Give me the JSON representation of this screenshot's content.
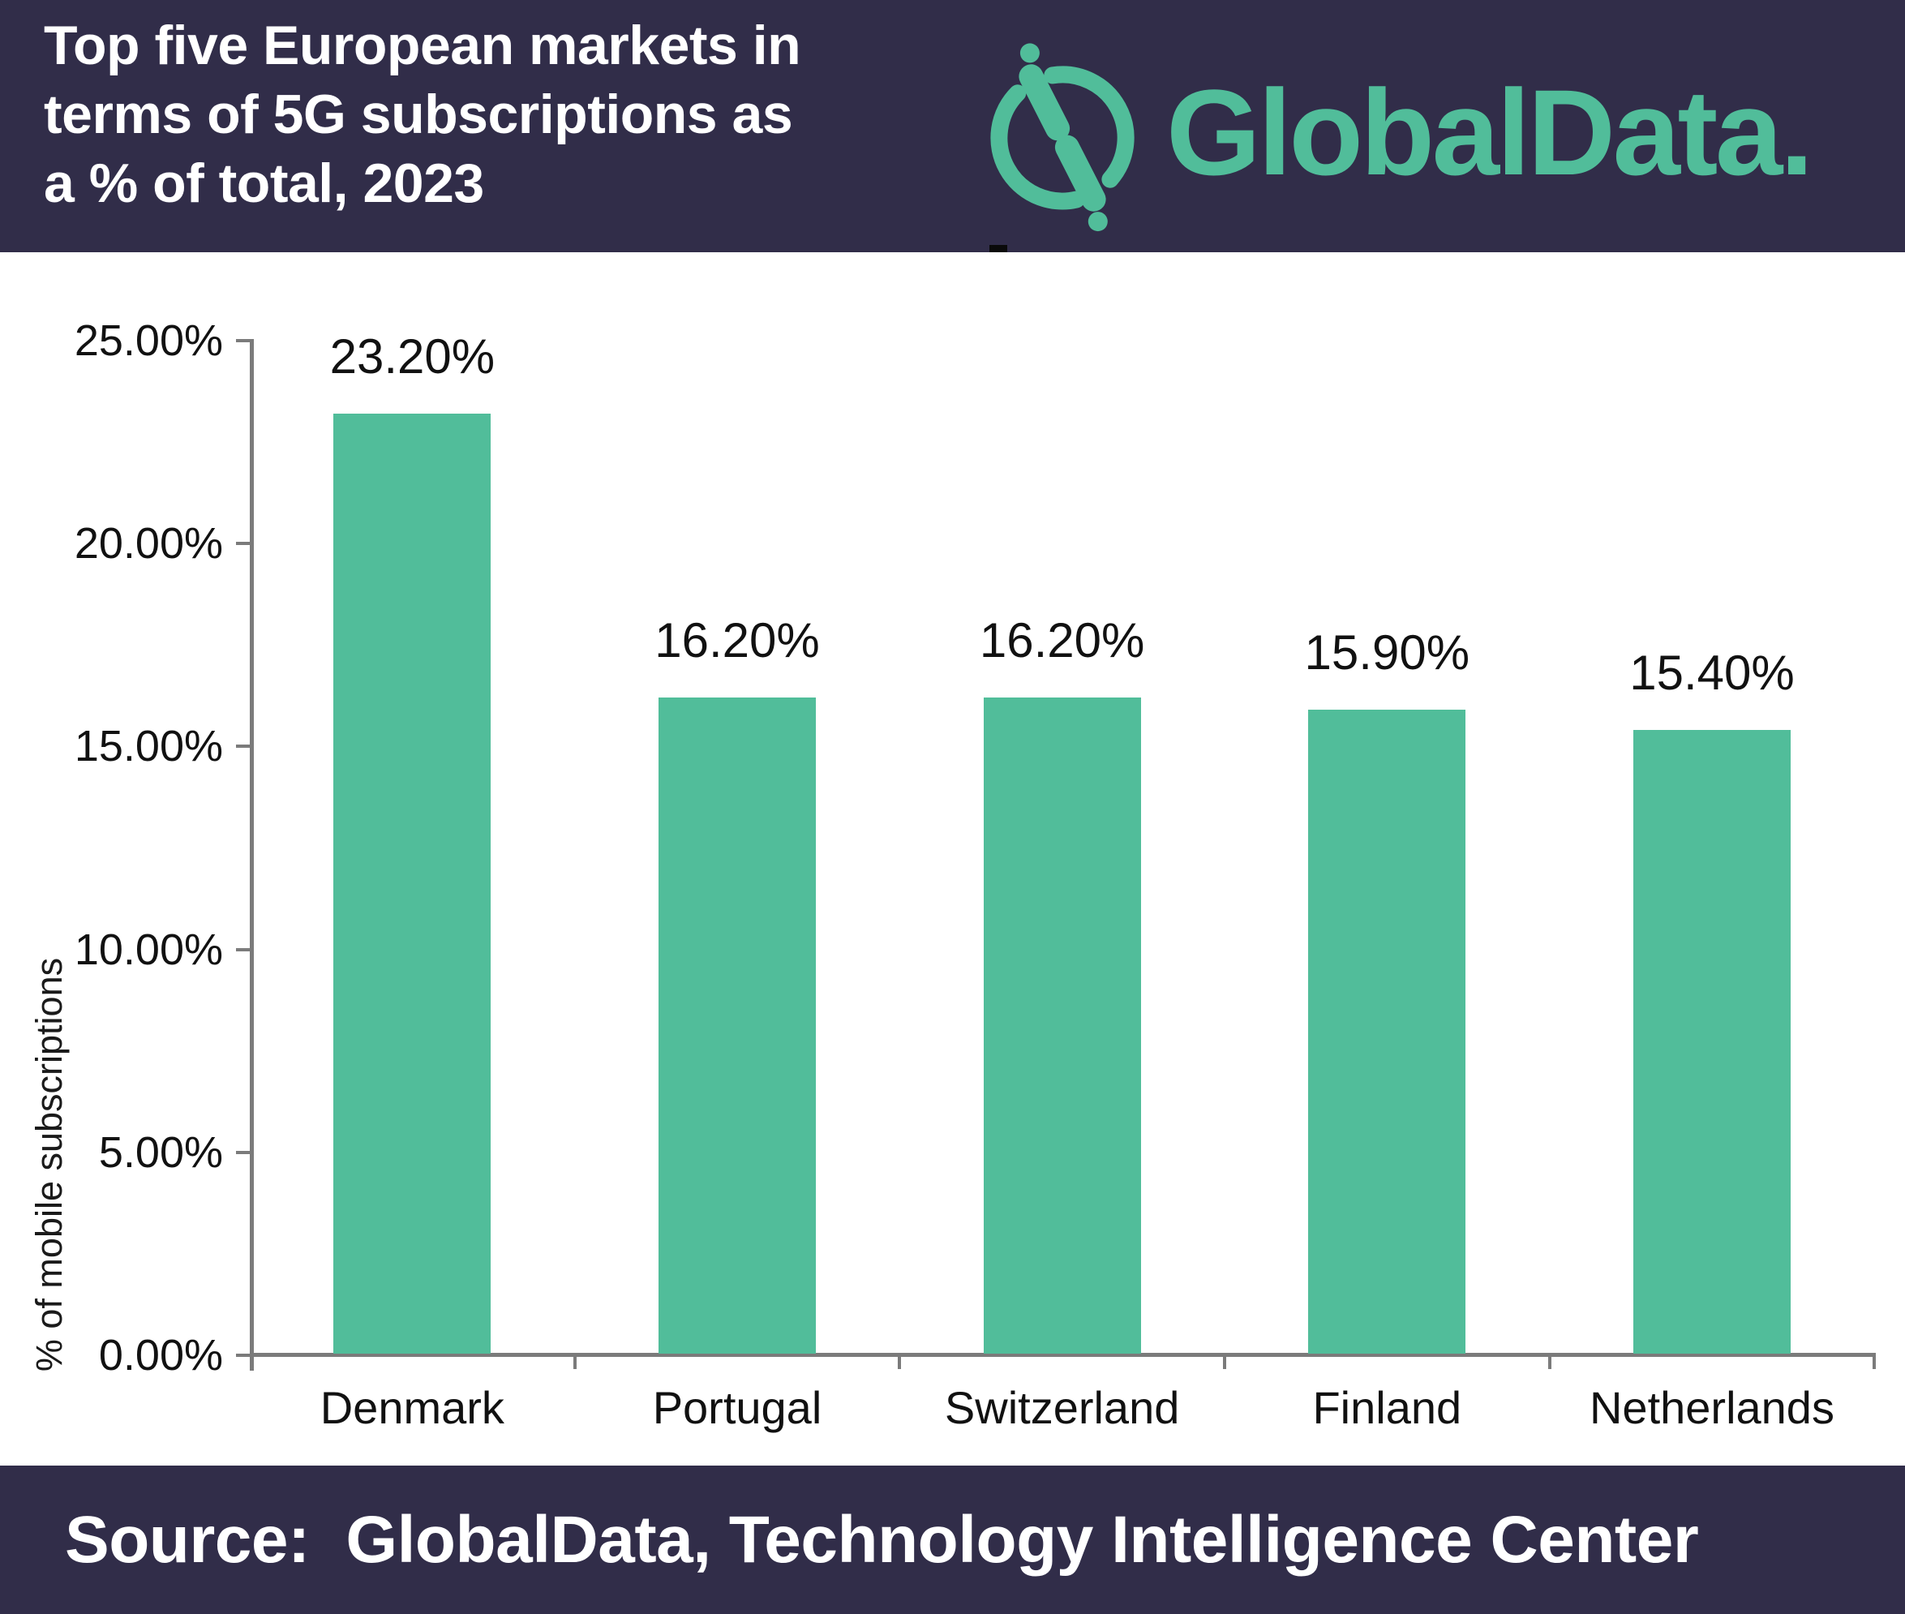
{
  "header": {
    "title_lines": [
      "Top five European markets in",
      "terms of 5G subscriptions as",
      "a % of total, 2023"
    ],
    "logo_text": "GlobalData."
  },
  "chart_data": {
    "type": "bar",
    "title": "Top five European markets in terms of 5G subscriptions as a % of total, 2023",
    "categories": [
      "Denmark",
      "Portugal",
      "Switzerland",
      "Finland",
      "Netherlands"
    ],
    "values": [
      23.2,
      16.2,
      16.2,
      15.9,
      15.4
    ],
    "value_labels": [
      "23.20%",
      "16.20%",
      "16.20%",
      "15.90%",
      "15.40%"
    ],
    "xlabel": "",
    "ylabel": "% of mobile subscriptions",
    "ylim": [
      0,
      25
    ],
    "yticks": [
      {
        "label": "0.00%",
        "value": 0
      },
      {
        "label": "5.00%",
        "value": 5
      },
      {
        "label": "10.00%",
        "value": 10
      },
      {
        "label": "15.00%",
        "value": 15
      },
      {
        "label": "20.00%",
        "value": 20
      },
      {
        "label": "25.00%",
        "value": 25
      }
    ],
    "grid": false,
    "legend": false,
    "bar_color": "#51BD9A"
  },
  "footer": {
    "source_text": "Source:  GlobalData, Technology Intelligence Center"
  },
  "colors": {
    "navy": "#312D49",
    "green": "#51BD9A",
    "axis_gray": "#7B7B7B",
    "text_black": "#111111",
    "white": "#FFFFFF"
  }
}
